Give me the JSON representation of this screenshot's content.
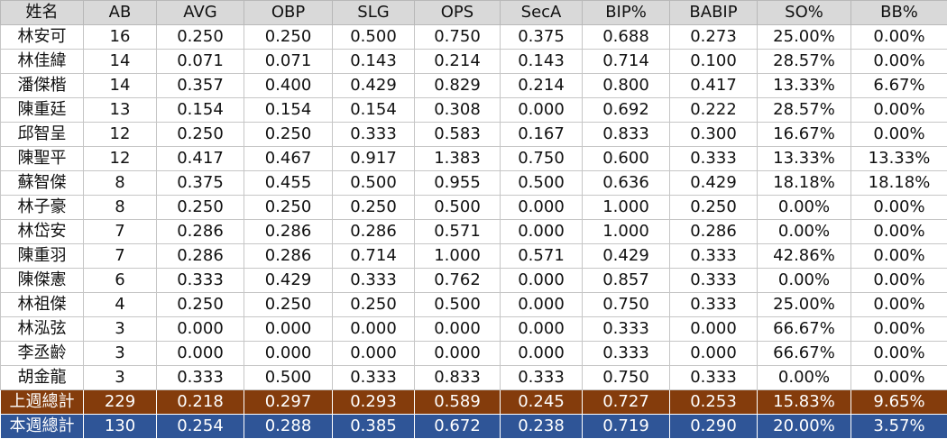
{
  "colors": {
    "header_bg": "#d9d9d9",
    "last_week_total_bg": "#843c0c",
    "this_week_total_bg": "#2f5597",
    "total_text": "#ffffff"
  },
  "table": {
    "columns": [
      "姓名",
      "AB",
      "AVG",
      "OBP",
      "SLG",
      "OPS",
      "SecA",
      "BIP%",
      "BABIP",
      "SO%",
      "BB%"
    ],
    "rows": [
      [
        "林安可",
        "16",
        "0.250",
        "0.250",
        "0.500",
        "0.750",
        "0.375",
        "0.688",
        "0.273",
        "25.00%",
        "0.00%"
      ],
      [
        "林佳緯",
        "14",
        "0.071",
        "0.071",
        "0.143",
        "0.214",
        "0.143",
        "0.714",
        "0.100",
        "28.57%",
        "0.00%"
      ],
      [
        "潘傑楷",
        "14",
        "0.357",
        "0.400",
        "0.429",
        "0.829",
        "0.214",
        "0.800",
        "0.417",
        "13.33%",
        "6.67%"
      ],
      [
        "陳重廷",
        "13",
        "0.154",
        "0.154",
        "0.154",
        "0.308",
        "0.000",
        "0.692",
        "0.222",
        "28.57%",
        "0.00%"
      ],
      [
        "邱智呈",
        "12",
        "0.250",
        "0.250",
        "0.333",
        "0.583",
        "0.167",
        "0.833",
        "0.300",
        "16.67%",
        "0.00%"
      ],
      [
        "陳聖平",
        "12",
        "0.417",
        "0.467",
        "0.917",
        "1.383",
        "0.750",
        "0.600",
        "0.333",
        "13.33%",
        "13.33%"
      ],
      [
        "蘇智傑",
        "8",
        "0.375",
        "0.455",
        "0.500",
        "0.955",
        "0.500",
        "0.636",
        "0.429",
        "18.18%",
        "18.18%"
      ],
      [
        "林子豪",
        "8",
        "0.250",
        "0.250",
        "0.250",
        "0.500",
        "0.000",
        "1.000",
        "0.250",
        "0.00%",
        "0.00%"
      ],
      [
        "林岱安",
        "7",
        "0.286",
        "0.286",
        "0.286",
        "0.571",
        "0.000",
        "1.000",
        "0.286",
        "0.00%",
        "0.00%"
      ],
      [
        "陳重羽",
        "7",
        "0.286",
        "0.286",
        "0.714",
        "1.000",
        "0.571",
        "0.429",
        "0.333",
        "42.86%",
        "0.00%"
      ],
      [
        "陳傑憲",
        "6",
        "0.333",
        "0.429",
        "0.333",
        "0.762",
        "0.000",
        "0.857",
        "0.333",
        "0.00%",
        "0.00%"
      ],
      [
        "林祖傑",
        "4",
        "0.250",
        "0.250",
        "0.250",
        "0.500",
        "0.000",
        "0.750",
        "0.333",
        "25.00%",
        "0.00%"
      ],
      [
        "林泓弦",
        "3",
        "0.000",
        "0.000",
        "0.000",
        "0.000",
        "0.000",
        "0.333",
        "0.000",
        "66.67%",
        "0.00%"
      ],
      [
        "李丞齡",
        "3",
        "0.000",
        "0.000",
        "0.000",
        "0.000",
        "0.000",
        "0.333",
        "0.000",
        "66.67%",
        "0.00%"
      ],
      [
        "胡金龍",
        "3",
        "0.333",
        "0.500",
        "0.333",
        "0.833",
        "0.333",
        "0.750",
        "0.333",
        "0.00%",
        "0.00%"
      ]
    ],
    "totals": {
      "last_week": [
        "上週總計",
        "229",
        "0.218",
        "0.297",
        "0.293",
        "0.589",
        "0.245",
        "0.727",
        "0.253",
        "15.83%",
        "9.65%"
      ],
      "this_week": [
        "本週總計",
        "130",
        "0.254",
        "0.288",
        "0.385",
        "0.672",
        "0.238",
        "0.719",
        "0.290",
        "20.00%",
        "3.57%"
      ]
    }
  }
}
